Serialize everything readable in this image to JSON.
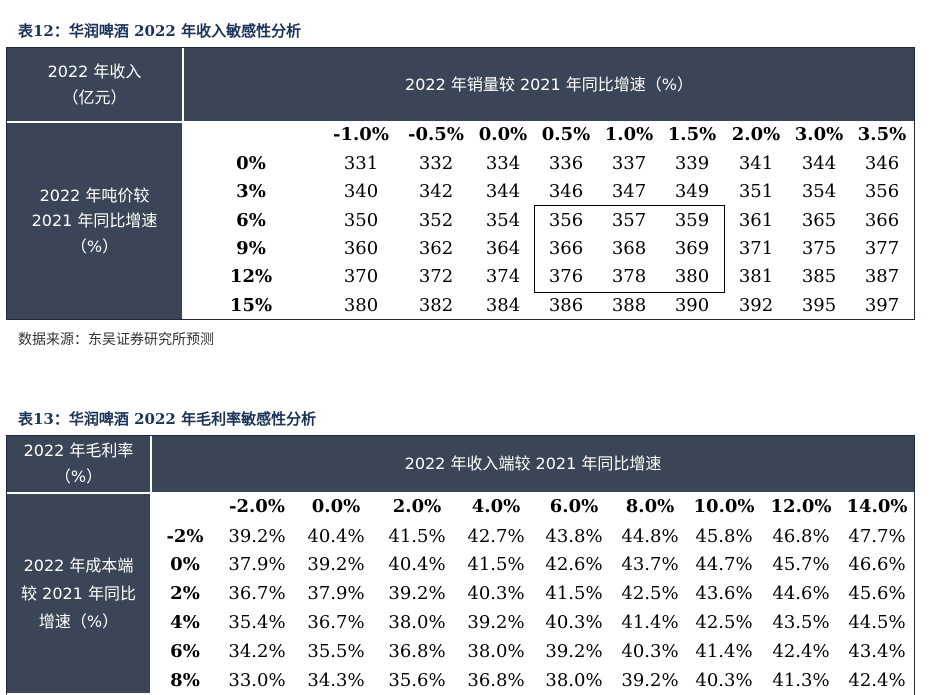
{
  "table12": {
    "caption": "表12：华润啤酒 2022 年收入敏感性分析",
    "corner_line1": "2022 年收入",
    "corner_line2": "（亿元）",
    "col_header": "2022 年销量较 2021 年同比增速（%）",
    "row_header_line1": "2022 年吨价较",
    "row_header_line2": "2021 年同比增速",
    "row_header_line3": "（%）",
    "columns": [
      "-1.0%",
      "-0.5%",
      "0.0%",
      "0.5%",
      "1.0%",
      "1.5%",
      "2.0%",
      "3.0%",
      "3.5%"
    ],
    "rows": [
      {
        "label": "0%",
        "values": [
          "331",
          "332",
          "334",
          "336",
          "337",
          "339",
          "341",
          "344",
          "346"
        ]
      },
      {
        "label": "3%",
        "values": [
          "340",
          "342",
          "344",
          "346",
          "347",
          "349",
          "351",
          "354",
          "356"
        ]
      },
      {
        "label": "6%",
        "values": [
          "350",
          "352",
          "354",
          "356",
          "357",
          "359",
          "361",
          "365",
          "366"
        ]
      },
      {
        "label": "9%",
        "values": [
          "360",
          "362",
          "364",
          "366",
          "368",
          "369",
          "371",
          "375",
          "377"
        ]
      },
      {
        "label": "12%",
        "values": [
          "370",
          "372",
          "374",
          "376",
          "378",
          "380",
          "381",
          "385",
          "387"
        ]
      },
      {
        "label": "15%",
        "values": [
          "380",
          "382",
          "384",
          "386",
          "388",
          "390",
          "392",
          "395",
          "397"
        ]
      }
    ],
    "source": "数据来源：东吴证券研究所预测"
  },
  "table13": {
    "caption": "表13：华润啤酒 2022 年毛利率敏感性分析",
    "corner_line1": "2022 年毛利率",
    "corner_line2": "（%）",
    "col_header": "2022 年收入端较 2021 年同比增速",
    "row_header_line1": "2022 年成本端",
    "row_header_line2": "较 2021 年同比",
    "row_header_line3": "增速（%）",
    "columns": [
      "-2.0%",
      "0.0%",
      "2.0%",
      "4.0%",
      "6.0%",
      "8.0%",
      "10.0%",
      "12.0%",
      "14.0%"
    ],
    "rows": [
      {
        "label": "-2%",
        "values": [
          "39.2%",
          "40.4%",
          "41.5%",
          "42.7%",
          "43.8%",
          "44.8%",
          "45.8%",
          "46.8%",
          "47.7%"
        ]
      },
      {
        "label": "0%",
        "values": [
          "37.9%",
          "39.2%",
          "40.4%",
          "41.5%",
          "42.6%",
          "43.7%",
          "44.7%",
          "45.7%",
          "46.6%"
        ]
      },
      {
        "label": "2%",
        "values": [
          "36.7%",
          "37.9%",
          "39.2%",
          "40.3%",
          "41.5%",
          "42.5%",
          "43.6%",
          "44.6%",
          "45.6%"
        ]
      },
      {
        "label": "4%",
        "values": [
          "35.4%",
          "36.7%",
          "38.0%",
          "39.2%",
          "40.3%",
          "41.4%",
          "42.5%",
          "43.5%",
          "44.5%"
        ]
      },
      {
        "label": "6%",
        "values": [
          "34.2%",
          "35.5%",
          "36.8%",
          "38.0%",
          "39.2%",
          "40.3%",
          "41.4%",
          "42.4%",
          "43.4%"
        ]
      },
      {
        "label": "8%",
        "values": [
          "33.0%",
          "34.3%",
          "35.6%",
          "36.8%",
          "38.0%",
          "39.2%",
          "40.3%",
          "41.3%",
          "42.4%"
        ]
      }
    ]
  }
}
